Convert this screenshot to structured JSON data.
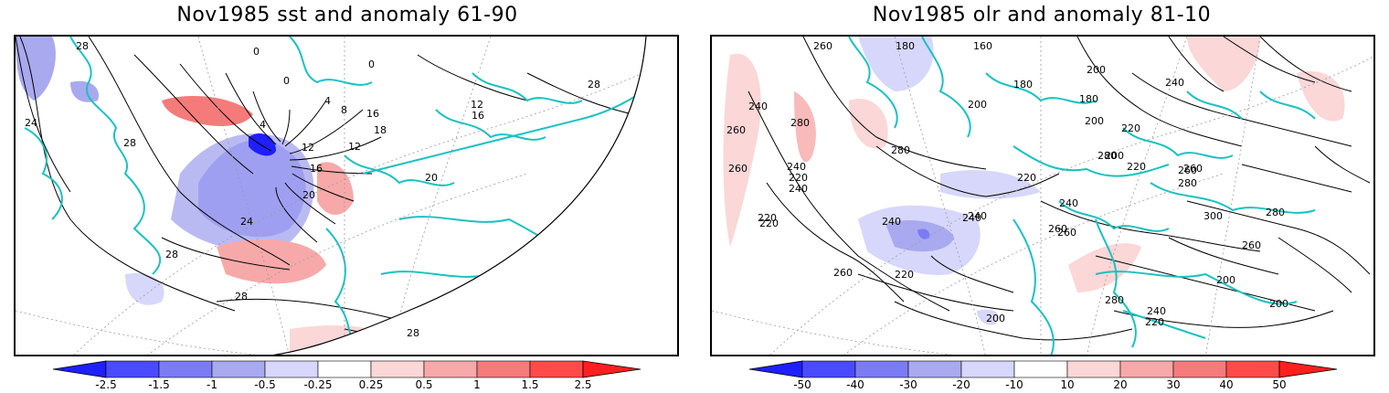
{
  "left_panel": {
    "title": "Nov1985 sst and anomaly 61-90",
    "colorbar": {
      "labels": [
        "-2.5",
        "-1.5",
        "-1",
        "-0.5",
        "-0.25",
        "0.25",
        "0.5",
        "1",
        "1.5",
        "2.5"
      ],
      "colors": [
        "#1f1fff",
        "#4a4aff",
        "#7b7bf5",
        "#a9a9f0",
        "#d7d7fb",
        "#ffffff",
        "#fbd7d7",
        "#f7a9a9",
        "#f57b7b",
        "#ff4a4a",
        "#ff1f1f"
      ]
    },
    "contour_labels": [
      "28",
      "24",
      "28",
      "4",
      "0",
      "0",
      "4",
      "8",
      "12",
      "16",
      "20",
      "24",
      "28",
      "28",
      "28",
      "12",
      "16",
      "12",
      "18",
      "20",
      "16",
      "28",
      "0"
    ]
  },
  "right_panel": {
    "title": "Nov1985 olr and anomaly 81-10",
    "colorbar": {
      "labels": [
        "-50",
        "-40",
        "-30",
        "-20",
        "-10",
        "10",
        "20",
        "30",
        "40",
        "50"
      ],
      "colors": [
        "#1f1fff",
        "#4a4aff",
        "#7b7bf5",
        "#a9a9f0",
        "#d7d7fb",
        "#ffffff",
        "#fbd7d7",
        "#f7a9a9",
        "#f57b7b",
        "#ff4a4a",
        "#ff1f1f"
      ]
    },
    "contour_labels": [
      "260",
      "180",
      "160",
      "200",
      "180",
      "240",
      "260",
      "200",
      "240",
      "280",
      "240",
      "220",
      "260",
      "220",
      "280",
      "180",
      "200",
      "220",
      "240",
      "220",
      "200",
      "260",
      "280",
      "240",
      "260",
      "280",
      "220",
      "240",
      "220",
      "260",
      "240",
      "200",
      "220",
      "260",
      "200",
      "240",
      "260",
      "300",
      "280",
      "240",
      "220",
      "260",
      "280",
      "200"
    ]
  },
  "colors": {
    "coastline": "#19c2c2",
    "contour": "#000000",
    "grid": "#9a9a9a"
  }
}
